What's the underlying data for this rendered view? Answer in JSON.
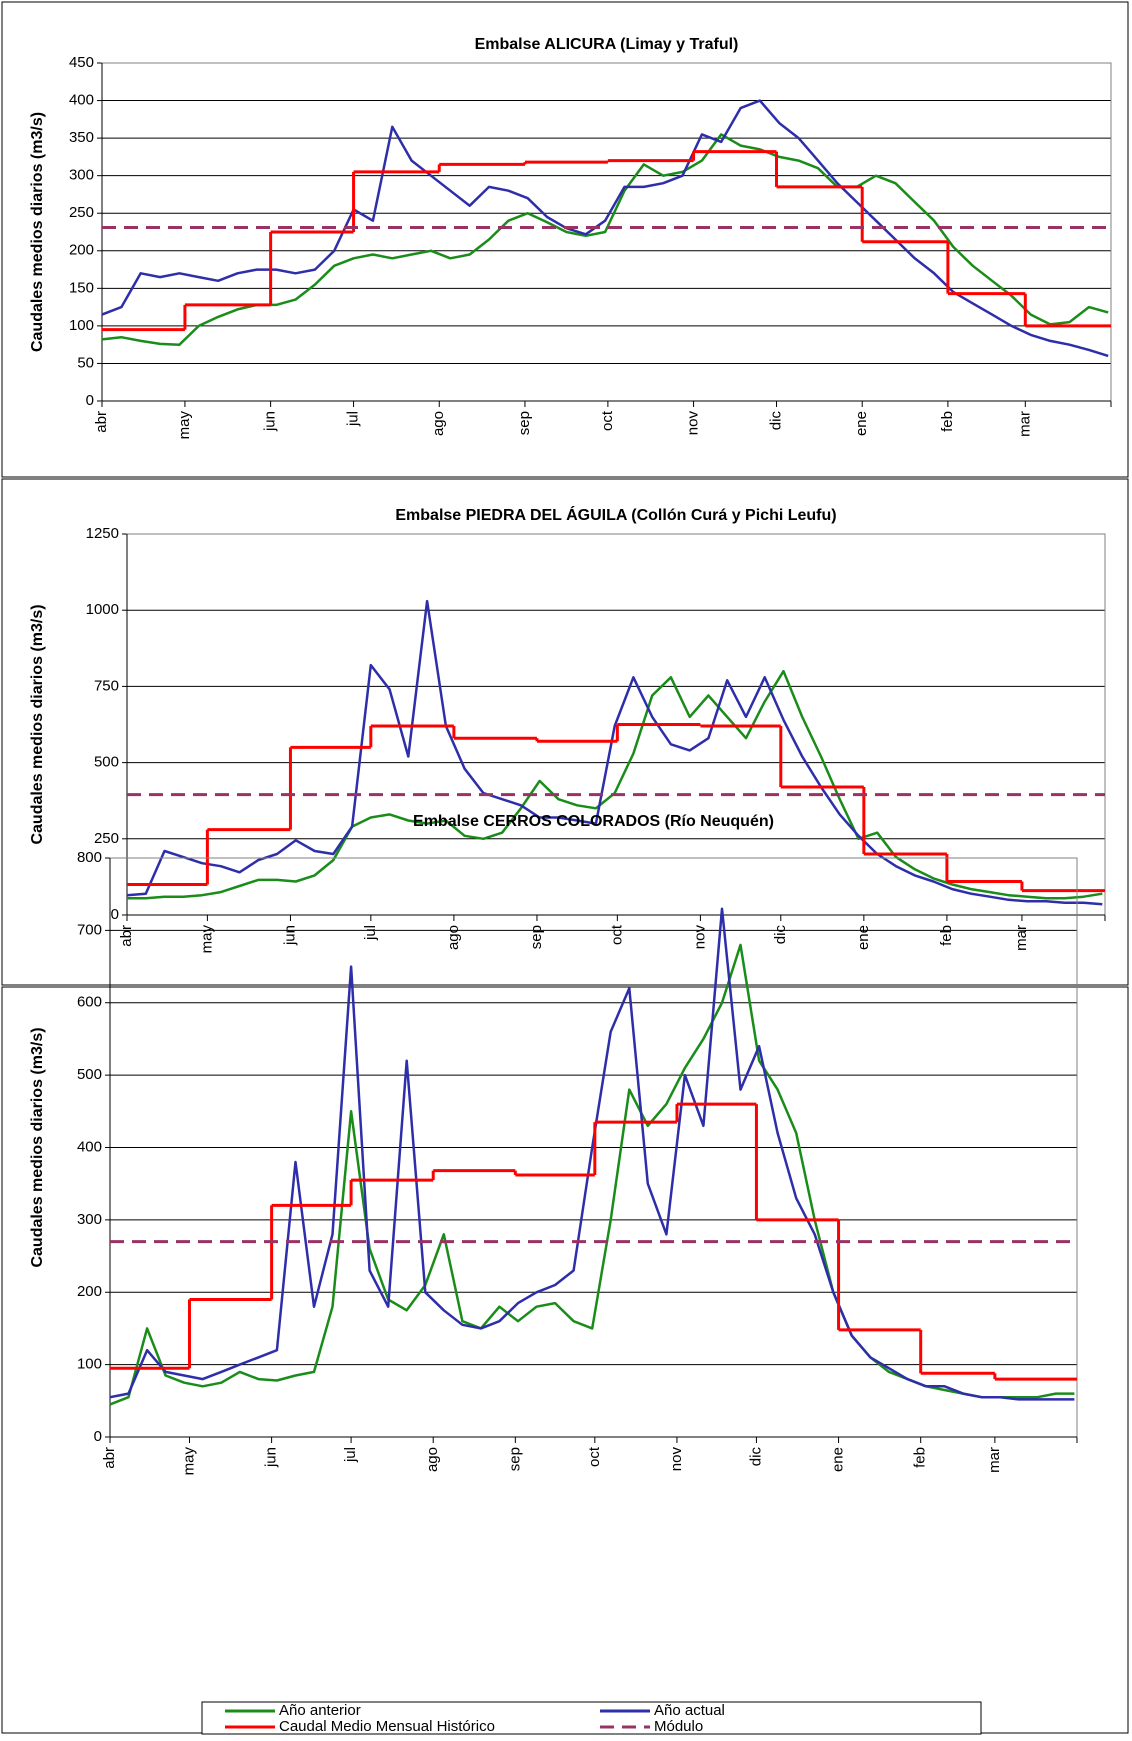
{
  "chart_data": [
    {
      "type": "line",
      "title": "Embalse ALICURA (Limay y Traful)",
      "ylabel": "Caudales medios diarios (m3/s)",
      "xlim": [
        0,
        365
      ],
      "xticks": [
        {
          "value": 0,
          "label": "abr"
        },
        {
          "value": 30,
          "label": "may"
        },
        {
          "value": 61,
          "label": "jun"
        },
        {
          "value": 91,
          "label": "jul"
        },
        {
          "value": 122,
          "label": "ago"
        },
        {
          "value": 153,
          "label": "sep"
        },
        {
          "value": 183,
          "label": "oct"
        },
        {
          "value": 214,
          "label": "nov"
        },
        {
          "value": 244,
          "label": "dic"
        },
        {
          "value": 275,
          "label": "ene"
        },
        {
          "value": 306,
          "label": "feb"
        },
        {
          "value": 334,
          "label": "mar"
        }
      ],
      "ylim": [
        0,
        450
      ],
      "yticks": [
        0,
        50,
        100,
        150,
        200,
        250,
        300,
        350,
        400,
        450
      ],
      "grid": true,
      "series": [
        {
          "color": "#1a8c1a",
          "x": [
            0,
            7,
            14,
            21,
            28,
            35,
            42,
            49,
            56,
            63,
            70,
            77,
            84,
            91,
            98,
            105,
            112,
            119,
            126,
            133,
            140,
            147,
            154,
            161,
            168,
            175,
            182,
            189,
            196,
            203,
            210,
            217,
            224,
            231,
            238,
            245,
            252,
            259,
            266,
            273,
            280,
            287,
            294,
            301,
            308,
            315,
            322,
            329,
            336,
            343,
            350,
            357,
            364
          ],
          "values": [
            82,
            85,
            80,
            76,
            75,
            100,
            112,
            122,
            128,
            128,
            135,
            155,
            180,
            190,
            195,
            190,
            195,
            200,
            190,
            195,
            215,
            240,
            250,
            238,
            225,
            220,
            225,
            280,
            315,
            300,
            305,
            320,
            355,
            340,
            335,
            325,
            320,
            310,
            285,
            285,
            300,
            290,
            265,
            240,
            205,
            180,
            160,
            140,
            115,
            102,
            105,
            125,
            118
          ]
        },
        {
          "color": "#2e2eaa",
          "x": [
            0,
            7,
            14,
            21,
            28,
            35,
            42,
            49,
            56,
            63,
            70,
            77,
            84,
            91,
            98,
            105,
            112,
            119,
            126,
            133,
            140,
            147,
            154,
            161,
            168,
            175,
            182,
            189,
            196,
            203,
            210,
            217,
            224,
            231,
            238,
            245,
            252,
            259,
            266,
            273,
            280,
            287,
            294,
            301,
            308,
            315,
            322,
            329,
            336,
            343,
            350,
            357,
            364
          ],
          "values": [
            115,
            125,
            170,
            165,
            170,
            165,
            160,
            170,
            175,
            175,
            170,
            175,
            200,
            255,
            240,
            365,
            320,
            300,
            280,
            260,
            285,
            280,
            270,
            245,
            230,
            222,
            240,
            285,
            285,
            290,
            300,
            355,
            345,
            390,
            400,
            370,
            350,
            320,
            290,
            265,
            240,
            215,
            190,
            170,
            145,
            130,
            115,
            100,
            88,
            80,
            75,
            68,
            60
          ]
        },
        {
          "color": "#ff0000",
          "step": true,
          "x": [
            0,
            30,
            61,
            91,
            122,
            153,
            183,
            214,
            244,
            275,
            306,
            334
          ],
          "values": [
            95,
            128,
            225,
            305,
            315,
            318,
            320,
            332,
            285,
            212,
            143,
            100
          ]
        },
        {
          "color": "#993366",
          "dash": true,
          "values": [
            231
          ]
        }
      ]
    },
    {
      "type": "line",
      "title": "Embalse PIEDRA DEL ÁGUILA (Collón Curá y Pichi Leufu)",
      "ylabel": "Caudales medios diarios (m3/s)",
      "xlim": [
        0,
        365
      ],
      "xticks": [
        {
          "value": 0,
          "label": "abr"
        },
        {
          "value": 30,
          "label": "may"
        },
        {
          "value": 61,
          "label": "jun"
        },
        {
          "value": 91,
          "label": "jul"
        },
        {
          "value": 122,
          "label": "ago"
        },
        {
          "value": 153,
          "label": "sep"
        },
        {
          "value": 183,
          "label": "oct"
        },
        {
          "value": 214,
          "label": "nov"
        },
        {
          "value": 244,
          "label": "dic"
        },
        {
          "value": 275,
          "label": "ene"
        },
        {
          "value": 306,
          "label": "feb"
        },
        {
          "value": 334,
          "label": "mar"
        }
      ],
      "ylim": [
        0,
        1250
      ],
      "yticks": [
        0,
        250,
        500,
        750,
        1000,
        1250
      ],
      "grid": true,
      "series": [
        {
          "color": "#1a8c1a",
          "x": [
            0,
            7,
            14,
            21,
            28,
            35,
            42,
            49,
            56,
            63,
            70,
            77,
            84,
            91,
            98,
            105,
            112,
            119,
            126,
            133,
            140,
            147,
            154,
            161,
            168,
            175,
            182,
            189,
            196,
            203,
            210,
            217,
            224,
            231,
            238,
            245,
            252,
            259,
            266,
            273,
            280,
            287,
            294,
            301,
            308,
            315,
            322,
            329,
            336,
            343,
            350,
            357,
            364
          ],
          "values": [
            55,
            55,
            60,
            60,
            65,
            75,
            95,
            115,
            115,
            110,
            130,
            180,
            290,
            320,
            330,
            310,
            300,
            310,
            260,
            250,
            270,
            350,
            440,
            380,
            360,
            350,
            400,
            530,
            720,
            780,
            650,
            720,
            650,
            580,
            700,
            800,
            650,
            520,
            380,
            250,
            270,
            190,
            150,
            120,
            100,
            85,
            75,
            65,
            60,
            55,
            55,
            60,
            70
          ]
        },
        {
          "color": "#2e2eaa",
          "x": [
            0,
            7,
            14,
            21,
            28,
            35,
            42,
            49,
            56,
            63,
            70,
            77,
            84,
            91,
            98,
            105,
            112,
            119,
            126,
            133,
            140,
            147,
            154,
            161,
            168,
            175,
            182,
            189,
            196,
            203,
            210,
            217,
            224,
            231,
            238,
            245,
            252,
            259,
            266,
            273,
            280,
            287,
            294,
            301,
            308,
            315,
            322,
            329,
            336,
            343,
            350,
            357,
            364
          ],
          "values": [
            65,
            70,
            210,
            190,
            170,
            160,
            140,
            180,
            200,
            245,
            210,
            200,
            290,
            820,
            740,
            520,
            1030,
            620,
            480,
            400,
            380,
            360,
            320,
            320,
            310,
            300,
            620,
            780,
            650,
            560,
            540,
            580,
            770,
            650,
            780,
            640,
            520,
            420,
            330,
            260,
            200,
            160,
            130,
            110,
            85,
            70,
            60,
            50,
            45,
            45,
            40,
            40,
            35
          ]
        },
        {
          "color": "#ff0000",
          "step": true,
          "x": [
            0,
            30,
            61,
            91,
            122,
            153,
            183,
            214,
            244,
            275,
            306,
            334
          ],
          "values": [
            100,
            280,
            550,
            620,
            580,
            570,
            625,
            620,
            420,
            200,
            110,
            80
          ]
        },
        {
          "color": "#993366",
          "dash": true,
          "values": [
            395
          ]
        }
      ]
    },
    {
      "type": "line",
      "title": "Embalse CERROS COLORADOS (Río Neuquén)",
      "ylabel": "Caudales medios diarios (m3/s)",
      "xlim": [
        0,
        365
      ],
      "xticks": [
        {
          "value": 0,
          "label": "abr"
        },
        {
          "value": 30,
          "label": "may"
        },
        {
          "value": 61,
          "label": "jun"
        },
        {
          "value": 91,
          "label": "jul"
        },
        {
          "value": 122,
          "label": "ago"
        },
        {
          "value": 153,
          "label": "sep"
        },
        {
          "value": 183,
          "label": "oct"
        },
        {
          "value": 214,
          "label": "nov"
        },
        {
          "value": 244,
          "label": "dic"
        },
        {
          "value": 275,
          "label": "ene"
        },
        {
          "value": 306,
          "label": "feb"
        },
        {
          "value": 334,
          "label": "mar"
        }
      ],
      "ylim": [
        0,
        800
      ],
      "yticks": [
        0,
        100,
        200,
        300,
        400,
        500,
        600,
        700,
        800
      ],
      "grid": true,
      "legend": "bottom",
      "series": [
        {
          "name": "Año anterior",
          "color": "#1a8c1a",
          "x": [
            0,
            7,
            14,
            21,
            28,
            35,
            42,
            49,
            56,
            63,
            70,
            77,
            84,
            91,
            98,
            105,
            112,
            119,
            126,
            133,
            140,
            147,
            154,
            161,
            168,
            175,
            182,
            189,
            196,
            203,
            210,
            217,
            224,
            231,
            238,
            245,
            252,
            259,
            266,
            273,
            280,
            287,
            294,
            301,
            308,
            315,
            322,
            329,
            336,
            343,
            350,
            357,
            364
          ],
          "values": [
            45,
            55,
            150,
            85,
            75,
            70,
            75,
            90,
            80,
            78,
            85,
            90,
            180,
            450,
            260,
            190,
            175,
            210,
            280,
            160,
            150,
            180,
            160,
            180,
            185,
            160,
            150,
            300,
            480,
            430,
            460,
            510,
            550,
            600,
            680,
            520,
            480,
            420,
            300,
            200,
            140,
            110,
            90,
            80,
            70,
            65,
            60,
            55,
            55,
            55,
            55,
            60,
            60
          ]
        },
        {
          "name": "Año actual",
          "color": "#2e2eaa",
          "x": [
            0,
            7,
            14,
            21,
            28,
            35,
            42,
            49,
            56,
            63,
            70,
            77,
            84,
            91,
            98,
            105,
            112,
            119,
            126,
            133,
            140,
            147,
            154,
            161,
            168,
            175,
            182,
            189,
            196,
            203,
            210,
            217,
            224,
            231,
            238,
            245,
            252,
            259,
            266,
            273,
            280,
            287,
            294,
            301,
            308,
            315,
            322,
            329,
            336,
            343,
            350,
            357,
            364
          ],
          "values": [
            55,
            60,
            120,
            90,
            85,
            80,
            90,
            100,
            110,
            120,
            380,
            180,
            280,
            650,
            230,
            180,
            520,
            200,
            175,
            155,
            150,
            160,
            185,
            200,
            210,
            230,
            400,
            560,
            620,
            350,
            280,
            500,
            430,
            730,
            480,
            540,
            420,
            330,
            280,
            200,
            140,
            110,
            95,
            80,
            70,
            70,
            60,
            55,
            55,
            52,
            52,
            52,
            52
          ]
        },
        {
          "name": "Caudal Medio Mensual Histórico",
          "color": "#ff0000",
          "step": true,
          "x": [
            0,
            30,
            61,
            91,
            122,
            153,
            183,
            214,
            244,
            275,
            306,
            334
          ],
          "values": [
            95,
            190,
            320,
            355,
            368,
            362,
            435,
            460,
            300,
            148,
            88,
            80
          ]
        },
        {
          "name": "Módulo",
          "color": "#993366",
          "dash": true,
          "values": [
            270
          ]
        }
      ]
    }
  ]
}
